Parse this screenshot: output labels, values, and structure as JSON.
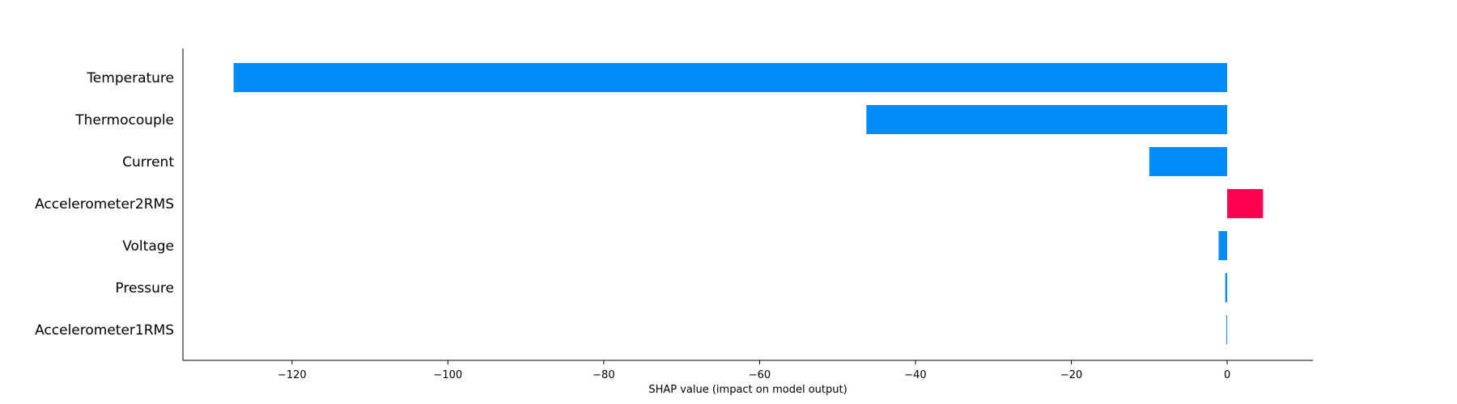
{
  "chart_data": {
    "type": "bar",
    "orientation": "horizontal",
    "categories": [
      "Temperature",
      "Thermocouple",
      "Current",
      "Accelerometer2RMS",
      "Voltage",
      "Pressure",
      "Accelerometer1RMS"
    ],
    "values": [
      -127.5,
      -46.3,
      -10.0,
      4.6,
      -1.1,
      -0.25,
      -0.1
    ],
    "xlabel": "SHAP value (impact on model output)",
    "ylabel": "",
    "title": "",
    "xlim": [
      -134,
      11
    ],
    "xticks": [
      -120,
      -100,
      -80,
      -60,
      -40,
      -20,
      0
    ],
    "xtick_labels": [
      "−120",
      "−100",
      "−80",
      "−60",
      "−40",
      "−20",
      "0"
    ],
    "grid": false,
    "legend": "none",
    "colors": {
      "negative": "#008bfb",
      "positive": "#ff0051",
      "axis": "#000000"
    }
  }
}
